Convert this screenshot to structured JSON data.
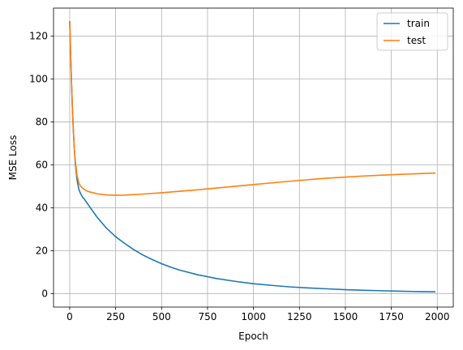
{
  "chart_data": {
    "type": "line",
    "title": "",
    "xlabel": "Epoch",
    "ylabel": "MSE Loss",
    "xlim": [
      -88,
      2087
    ],
    "ylim": [
      -6.3,
      133.1
    ],
    "xticks": [
      0,
      250,
      500,
      750,
      1000,
      1250,
      1500,
      1750,
      2000
    ],
    "yticks": [
      0,
      20,
      40,
      60,
      80,
      100,
      120
    ],
    "grid": true,
    "legend": "top-right",
    "series": [
      {
        "name": "train",
        "color": "#1f77b4",
        "x": [
          0,
          5,
          10,
          15,
          20,
          25,
          30,
          40,
          50,
          60,
          70,
          80,
          100,
          125,
          150,
          200,
          250,
          300,
          350,
          400,
          450,
          500,
          550,
          600,
          700,
          800,
          900,
          1000,
          1100,
          1200,
          1300,
          1400,
          1500,
          1600,
          1700,
          1800,
          1900,
          1990
        ],
        "y": [
          127,
          112,
          98,
          86,
          76,
          68,
          61,
          53,
          48.5,
          46.5,
          45,
          44,
          41.5,
          38.5,
          35.5,
          30.5,
          26.5,
          23.3,
          20.4,
          17.9,
          15.8,
          13.9,
          12.3,
          10.9,
          8.7,
          7.0,
          5.7,
          4.6,
          3.8,
          3.1,
          2.6,
          2.2,
          1.8,
          1.5,
          1.3,
          1.1,
          0.9,
          0.8
        ]
      },
      {
        "name": "test",
        "color": "#ff7f0e",
        "x": [
          0,
          5,
          10,
          15,
          20,
          25,
          30,
          40,
          50,
          60,
          70,
          80,
          100,
          150,
          200,
          250,
          300,
          400,
          500,
          600,
          700,
          800,
          900,
          1000,
          1100,
          1200,
          1300,
          1400,
          1500,
          1600,
          1700,
          1800,
          1900,
          1990
        ],
        "y": [
          127,
          112,
          98,
          86,
          76,
          68,
          62,
          55,
          51.5,
          50,
          49.2,
          48.5,
          47.6,
          46.5,
          46,
          45.8,
          45.9,
          46.4,
          47.0,
          47.7,
          48.4,
          49.2,
          50.0,
          50.8,
          51.6,
          52.4,
          53.1,
          53.8,
          54.3,
          54.8,
          55.2,
          55.6,
          55.9,
          56.2
        ]
      }
    ]
  }
}
